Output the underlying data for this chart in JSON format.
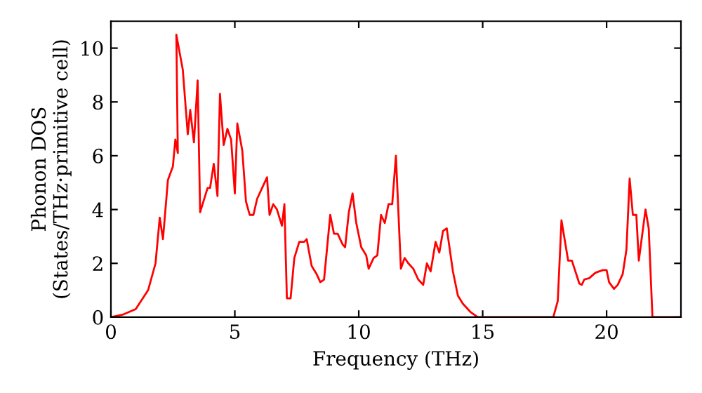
{
  "chart_data": {
    "type": "line",
    "xlabel": "Frequency (THz)",
    "ylabel": "Phonon DOS\n(States/THz·primitive cell)",
    "xlim": [
      0,
      23
    ],
    "ylim": [
      0,
      11
    ],
    "xticks": [
      0,
      5,
      10,
      15,
      20
    ],
    "yticks": [
      0,
      2,
      4,
      6,
      8,
      10
    ],
    "grid": false,
    "legend": false,
    "marker": "none",
    "line_style": "solid",
    "series": [
      {
        "color": "#ff0000",
        "x": [
          0,
          0.5,
          1.0,
          1.5,
          1.8,
          1.97,
          2.1,
          2.3,
          2.5,
          2.6,
          2.7,
          2.64,
          2.9,
          3.1,
          3.2,
          3.35,
          3.5,
          3.6,
          3.8,
          3.9,
          4.0,
          4.15,
          4.3,
          4.4,
          4.55,
          4.7,
          4.85,
          5.0,
          5.1,
          5.3,
          5.45,
          5.6,
          5.75,
          5.9,
          6.1,
          6.3,
          6.4,
          6.55,
          6.7,
          6.9,
          7.0,
          7.1,
          7.25,
          7.4,
          7.6,
          7.8,
          7.9,
          8.1,
          8.3,
          8.45,
          8.6,
          8.85,
          9.0,
          9.15,
          9.35,
          9.45,
          9.6,
          9.75,
          9.9,
          10.1,
          10.3,
          10.4,
          10.6,
          10.75,
          10.9,
          11.05,
          11.2,
          11.35,
          11.5,
          11.7,
          11.85,
          12.0,
          12.2,
          12.4,
          12.6,
          12.75,
          12.9,
          13.1,
          13.25,
          13.4,
          13.55,
          13.8,
          14.0,
          14.2,
          14.5,
          14.8,
          17.85,
          18.03,
          18.18,
          18.45,
          18.6,
          18.9,
          19.0,
          19.1,
          19.3,
          19.55,
          19.85,
          20.0,
          20.1,
          20.3,
          20.45,
          20.65,
          20.8,
          20.93,
          21.06,
          21.2,
          21.3,
          21.57,
          21.7,
          21.85,
          23
        ],
        "values": [
          0,
          0.1,
          0.3,
          1.0,
          2.0,
          3.7,
          2.9,
          5.1,
          5.6,
          6.6,
          6.1,
          10.5,
          9.2,
          6.8,
          7.7,
          6.5,
          8.8,
          3.9,
          4.5,
          4.8,
          4.8,
          5.7,
          4.5,
          8.3,
          6.4,
          7.0,
          6.6,
          4.6,
          7.2,
          6.2,
          4.3,
          3.8,
          3.8,
          4.4,
          4.8,
          5.2,
          3.8,
          4.2,
          4.0,
          3.4,
          4.2,
          0.7,
          0.7,
          2.2,
          2.8,
          2.8,
          2.9,
          1.9,
          1.6,
          1.3,
          1.4,
          3.8,
          3.1,
          3.1,
          2.7,
          2.6,
          3.9,
          4.6,
          3.5,
          2.6,
          2.3,
          1.8,
          2.2,
          2.3,
          3.8,
          3.5,
          4.2,
          4.2,
          6.0,
          1.8,
          2.2,
          2.0,
          1.8,
          1.4,
          1.2,
          2.0,
          1.7,
          2.8,
          2.4,
          3.2,
          3.3,
          1.7,
          0.8,
          0.5,
          0.2,
          0,
          0,
          0.6,
          3.6,
          2.1,
          2.1,
          1.25,
          1.2,
          1.4,
          1.45,
          1.65,
          1.75,
          1.75,
          1.3,
          1.05,
          1.2,
          1.6,
          2.5,
          5.15,
          3.8,
          3.8,
          2.1,
          4.0,
          3.3,
          0,
          0
        ]
      }
    ]
  }
}
